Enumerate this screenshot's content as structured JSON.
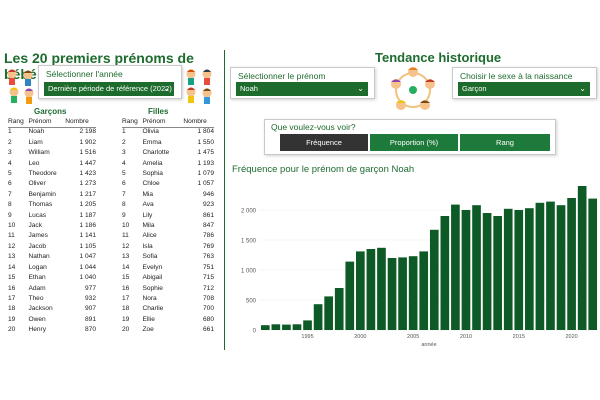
{
  "left": {
    "title": "Les 20 premiers prénoms de bébé en 2022",
    "year_select": {
      "label": "Sélectionner l'année",
      "value": "Dernière période de référence (2022)"
    },
    "boys": {
      "header": "Garçons",
      "columns": [
        "Rang",
        "Prénom",
        "Nombre"
      ],
      "rows": [
        [
          "1",
          "Noah",
          "2 198"
        ],
        [
          "2",
          "Liam",
          "1 902"
        ],
        [
          "3",
          "William",
          "1 516"
        ],
        [
          "4",
          "Leo",
          "1 447"
        ],
        [
          "5",
          "Theodore",
          "1 423"
        ],
        [
          "6",
          "Oliver",
          "1 273"
        ],
        [
          "7",
          "Benjamin",
          "1 217"
        ],
        [
          "8",
          "Thomas",
          "1 205"
        ],
        [
          "9",
          "Lucas",
          "1 187"
        ],
        [
          "10",
          "Jack",
          "1 186"
        ],
        [
          "11",
          "James",
          "1 141"
        ],
        [
          "12",
          "Jacob",
          "1 105"
        ],
        [
          "13",
          "Nathan",
          "1 047"
        ],
        [
          "14",
          "Logan",
          "1 044"
        ],
        [
          "15",
          "Ethan",
          "1 040"
        ],
        [
          "16",
          "Adam",
          "977"
        ],
        [
          "17",
          "Theo",
          "932"
        ],
        [
          "18",
          "Jackson",
          "907"
        ],
        [
          "19",
          "Owen",
          "891"
        ],
        [
          "20",
          "Henry",
          "870"
        ]
      ]
    },
    "girls": {
      "header": "Filles",
      "columns": [
        "Rang",
        "Prénom",
        "Nombre"
      ],
      "rows": [
        [
          "1",
          "Olivia",
          "1 804"
        ],
        [
          "2",
          "Emma",
          "1 550"
        ],
        [
          "3",
          "Charlotte",
          "1 475"
        ],
        [
          "4",
          "Amelia",
          "1 193"
        ],
        [
          "5",
          "Sophia",
          "1 079"
        ],
        [
          "6",
          "Chloe",
          "1 057"
        ],
        [
          "7",
          "Mia",
          "946"
        ],
        [
          "8",
          "Ava",
          "923"
        ],
        [
          "9",
          "Lily",
          "861"
        ],
        [
          "10",
          "Mila",
          "847"
        ],
        [
          "11",
          "Alice",
          "786"
        ],
        [
          "12",
          "Isla",
          "769"
        ],
        [
          "13",
          "Sofia",
          "763"
        ],
        [
          "14",
          "Evelyn",
          "751"
        ],
        [
          "15",
          "Abigail",
          "715"
        ],
        [
          "16",
          "Sophie",
          "712"
        ],
        [
          "17",
          "Nora",
          "708"
        ],
        [
          "18",
          "Charlie",
          "700"
        ],
        [
          "19",
          "Ellie",
          "680"
        ],
        [
          "20",
          "Zoe",
          "661"
        ]
      ]
    }
  },
  "right": {
    "title": "Tendance historique",
    "name_select": {
      "label": "Sélectionner le prénom",
      "value": "Noah"
    },
    "sex_select": {
      "label": "Choisir le sexe à la naissance",
      "value": "Garçon"
    },
    "question": {
      "label": "Que voulez-vous voir?",
      "options": [
        "Fréquence",
        "Proportion (%)",
        "Rang"
      ],
      "selected": "Fréquence"
    }
  },
  "colors": {
    "primary": "#1e6b2e",
    "selected_dark": "#333333",
    "bar": "#0d5a26",
    "gridline": "#d9d9d9"
  },
  "icons": {
    "left_illustration": "children-group-icon",
    "center_illustration": "children-circle-icon",
    "dropdown": "chevron-down-icon"
  },
  "chart_data": {
    "type": "bar",
    "title": "Fréquence pour le prénom de garçon Noah",
    "xlabel": "année",
    "ylabel": "",
    "x_ticks": [
      "1995",
      "2000",
      "2005",
      "2010",
      "2015",
      "2020"
    ],
    "y_ticks": [
      "0",
      "500",
      "1 000",
      "1 500",
      "2 000"
    ],
    "ylim": [
      0,
      2500
    ],
    "grid": true,
    "categories": [
      1991,
      1992,
      1993,
      1994,
      1995,
      1996,
      1997,
      1998,
      1999,
      2000,
      2001,
      2002,
      2003,
      2004,
      2005,
      2006,
      2007,
      2008,
      2009,
      2010,
      2011,
      2012,
      2013,
      2014,
      2015,
      2016,
      2017,
      2018,
      2019,
      2020,
      2021,
      2022
    ],
    "values": [
      80,
      95,
      90,
      95,
      160,
      430,
      560,
      700,
      1140,
      1310,
      1350,
      1370,
      1200,
      1210,
      1230,
      1310,
      1670,
      1900,
      2090,
      2000,
      2080,
      1950,
      1900,
      2020,
      2000,
      2030,
      2120,
      2140,
      2080,
      2200,
      2400,
      2190
    ]
  }
}
